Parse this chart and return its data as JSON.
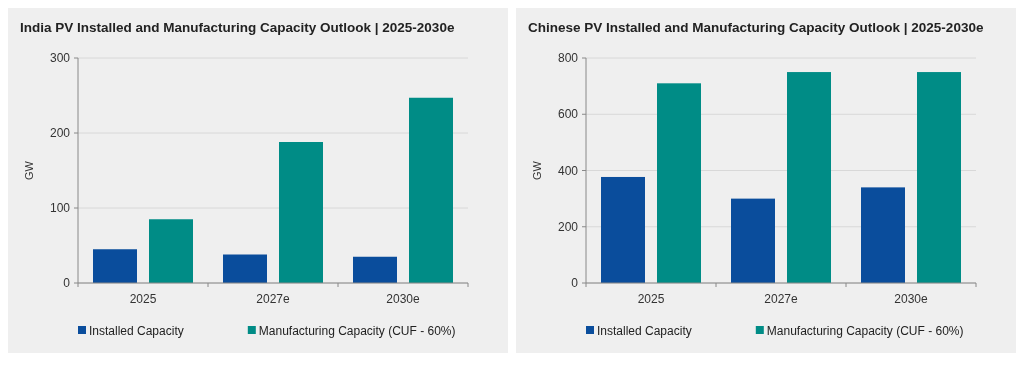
{
  "chart_data": [
    {
      "type": "bar",
      "title": "India PV Installed and Manufacturing Capacity Outlook | 2025-2030e",
      "ylabel": "GW",
      "categories": [
        "2025",
        "2027e",
        "2030e"
      ],
      "series": [
        {
          "name": "Installed Capacity",
          "color": "#0a4d9c",
          "values": [
            45,
            38,
            35
          ]
        },
        {
          "name": "Manufacturing Capacity (CUF - 60%)",
          "color": "#008c86",
          "values": [
            85,
            188,
            247
          ]
        }
      ],
      "ylim": [
        0,
        300
      ],
      "yticks": [
        0,
        100,
        200,
        300
      ],
      "grid": "y",
      "legend": "bottom"
    },
    {
      "type": "bar",
      "title": "Chinese PV Installed and Manufacturing Capacity Outlook | 2025-2030e",
      "ylabel": "GW",
      "categories": [
        "2025",
        "2027e",
        "2030e"
      ],
      "series": [
        {
          "name": "Installed Capacity",
          "color": "#0a4d9c",
          "values": [
            377,
            300,
            340
          ]
        },
        {
          "name": "Manufacturing Capacity (CUF - 60%)",
          "color": "#008c86",
          "values": [
            710,
            750,
            750
          ]
        }
      ],
      "ylim": [
        0,
        800
      ],
      "yticks": [
        0,
        200,
        400,
        600,
        800
      ],
      "grid": "y",
      "legend": "bottom"
    }
  ]
}
